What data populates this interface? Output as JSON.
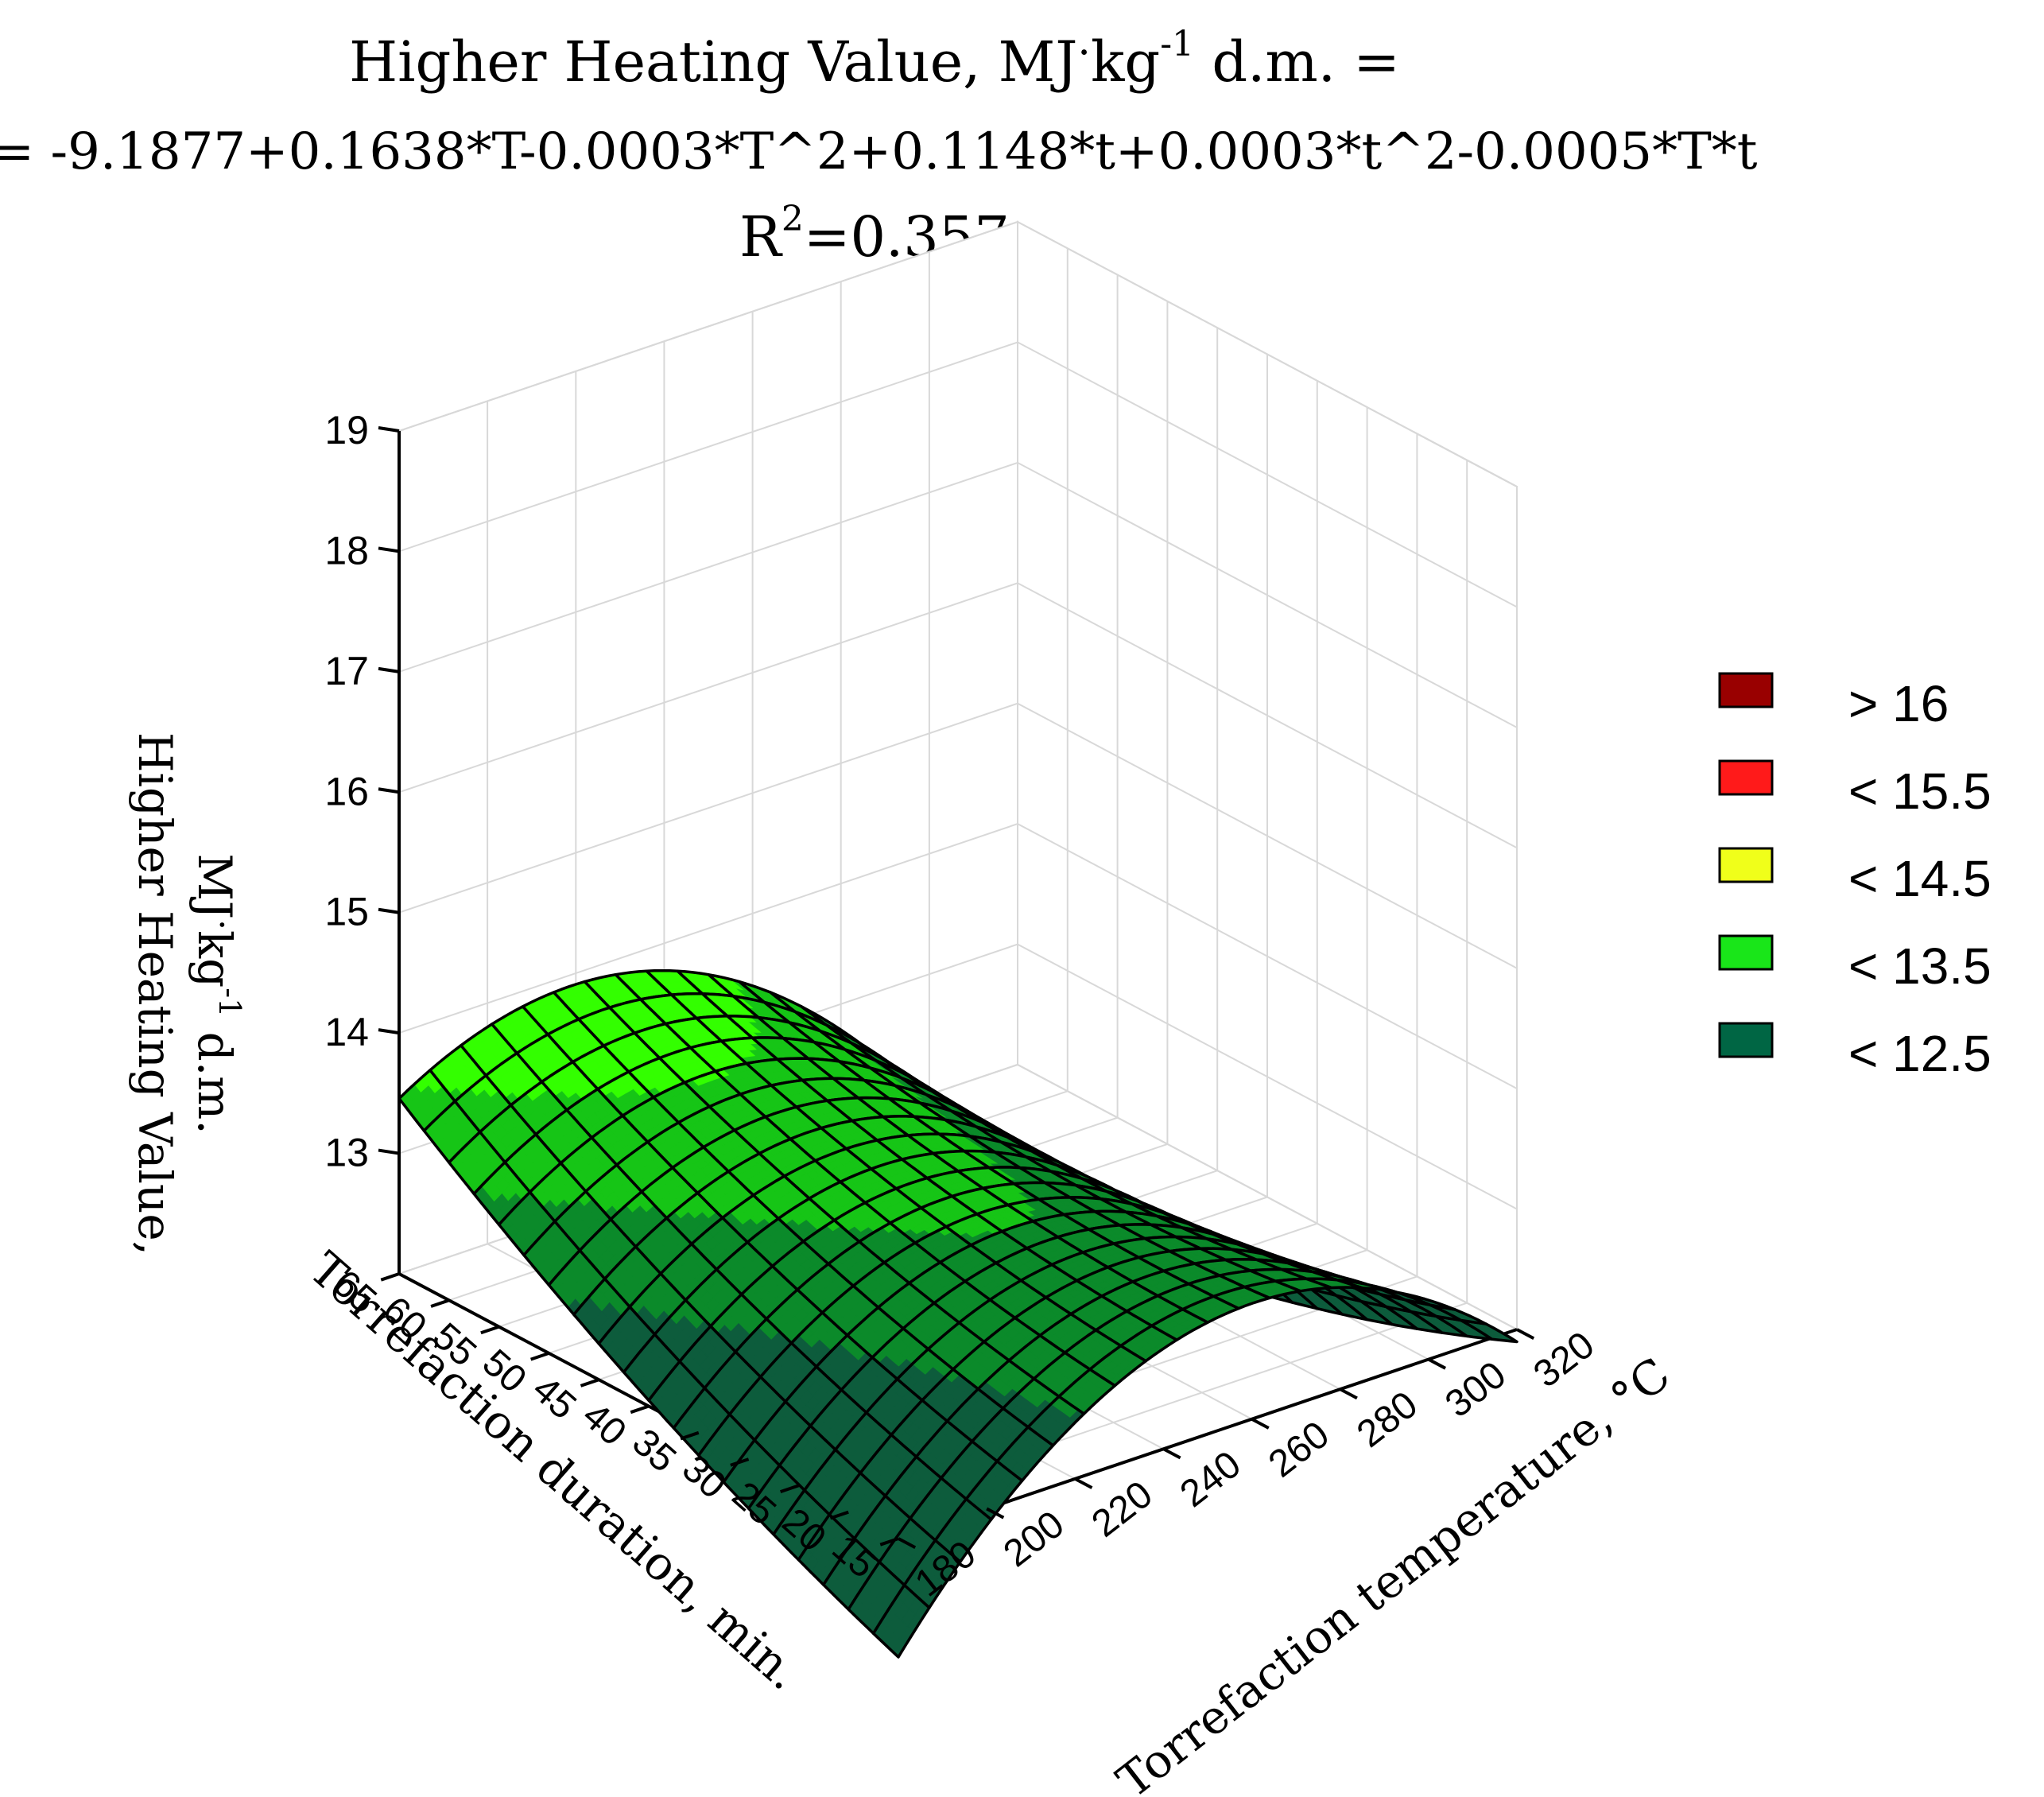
{
  "chart_data": {
    "type": "surface3d",
    "title": {
      "line1_main": "Higher Heating Value, MJ",
      "line1_dot": "·",
      "line1_kg": "kg",
      "line1_sup": "-1",
      "line1_tail": " d.m. =",
      "line2": "= -9.1877+0.1638*T-0.0003*T^2+0.1148*t+0.0003*t^2-0.0005*T*t",
      "line3_r": "R",
      "line3_sup": "2",
      "line3_tail": "=0.357"
    },
    "model": {
      "intercept": -9.1877,
      "T": 0.1638,
      "T2": -0.0003,
      "t": 0.1148,
      "t2": 0.0003,
      "Tt": -0.0005
    },
    "x_axis": {
      "label": "Torrefaction temperature, °C",
      "variable": "T",
      "range": [
        180,
        320
      ],
      "ticks": [
        "180",
        "200",
        "220",
        "240",
        "260",
        "280",
        "300",
        "320"
      ]
    },
    "y_axis": {
      "label": "Torrefaction duration, min.",
      "variable": "t",
      "range": [
        15,
        65
      ],
      "ticks": [
        "15",
        "20",
        "25",
        "30",
        "35",
        "40",
        "45",
        "50",
        "55",
        "60",
        "65"
      ]
    },
    "z_axis": {
      "label_line1": "Higher Heating Value,",
      "label_line2_main": "MJ",
      "label_line2_dot": "·",
      "label_line2_kg": "kg",
      "label_line2_sup": "-1",
      "label_line2_tail": " d.m.",
      "range": [
        12,
        19
      ],
      "ticks": [
        "13",
        "14",
        "15",
        "16",
        "17",
        "18",
        "19"
      ]
    },
    "legend": {
      "position": "right",
      "entries": [
        {
          "label": "> 16",
          "color": "#990000"
        },
        {
          "label": "< 15.5",
          "color": "#ff1a1a"
        },
        {
          "label": "< 14.5",
          "color": "#f0ff1a"
        },
        {
          "label": "< 13.5",
          "color": "#19e619"
        },
        {
          "label": "< 12.5",
          "color": "#006644"
        }
      ]
    },
    "colors": {
      "levels": [
        12.5,
        13.0,
        13.5,
        14.0,
        14.5,
        15.0,
        15.5,
        16.0,
        16.5
      ],
      "bands": [
        "#0d5c3c",
        "#0b8a2a",
        "#16c516",
        "#33ff00",
        "#c8f028",
        "#f0ff00",
        "#ffb300",
        "#ff1500",
        "#dd0000",
        "#990000"
      ]
    }
  }
}
